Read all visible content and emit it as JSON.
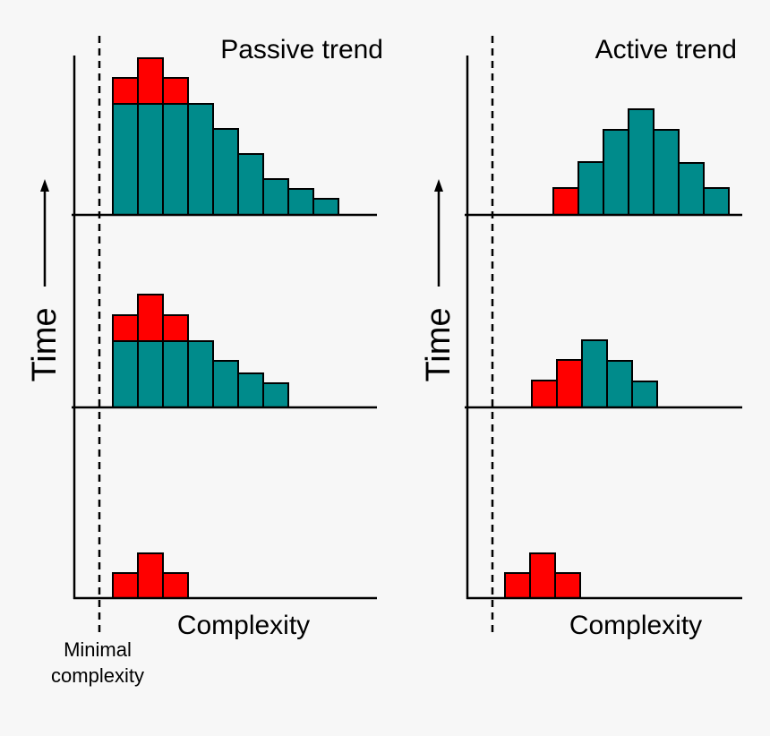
{
  "panels": [
    {
      "title": "Passive trend",
      "y_label": "Time",
      "x_label": "Complexity"
    },
    {
      "title": "Active trend",
      "y_label": "Time",
      "x_label": "Complexity"
    }
  ],
  "annotation": {
    "lines": [
      "Minimal",
      "complexity"
    ]
  }
}
